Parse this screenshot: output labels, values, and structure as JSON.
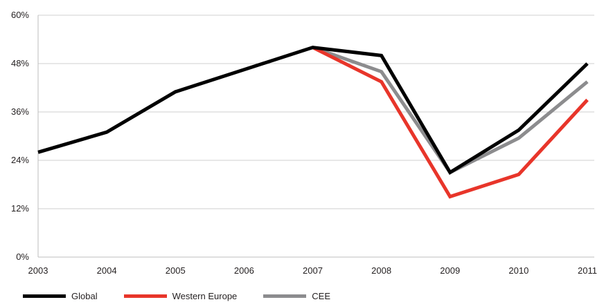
{
  "chart_data": {
    "type": "line",
    "x": [
      "2003",
      "2004",
      "2005",
      "2006",
      "2007",
      "2008",
      "2009",
      "2010",
      "2011"
    ],
    "y_ticks": [
      "0%",
      "12%",
      "24%",
      "36%",
      "48%",
      "60%"
    ],
    "ylim": [
      0,
      60
    ],
    "grid": true,
    "legend_position": "bottom-left",
    "series": [
      {
        "name": "Global",
        "color": "#000000",
        "values": [
          26,
          31,
          41,
          46.5,
          52,
          50,
          21,
          31.5,
          48
        ]
      },
      {
        "name": "Western Europe",
        "color": "#e8352a",
        "values": [
          null,
          null,
          null,
          null,
          52,
          43.5,
          15,
          20.5,
          39
        ]
      },
      {
        "name": "CEE",
        "color": "#8c8c8e",
        "values": [
          null,
          null,
          null,
          null,
          52,
          46,
          21,
          29.5,
          43.5
        ]
      }
    ]
  }
}
